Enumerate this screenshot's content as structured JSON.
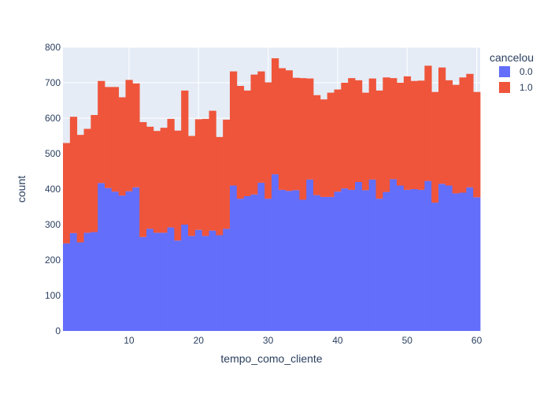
{
  "chart_data": {
    "type": "bar",
    "stacked": true,
    "xlabel": "tempo_como_cliente",
    "ylabel": "count",
    "xlim": [
      0.5,
      60.5
    ],
    "ylim": [
      0,
      800
    ],
    "x_ticks": [
      10,
      20,
      30,
      40,
      50,
      60
    ],
    "y_ticks": [
      0,
      100,
      200,
      300,
      400,
      500,
      600,
      700,
      800
    ],
    "grid": true,
    "legend": {
      "title": "cancelou",
      "position": "top-right"
    },
    "x": [
      1,
      2,
      3,
      4,
      5,
      6,
      7,
      8,
      9,
      10,
      11,
      12,
      13,
      14,
      15,
      16,
      17,
      18,
      19,
      20,
      21,
      22,
      23,
      24,
      25,
      26,
      27,
      28,
      29,
      30,
      31,
      32,
      33,
      34,
      35,
      36,
      37,
      38,
      39,
      40,
      41,
      42,
      43,
      44,
      45,
      46,
      47,
      48,
      49,
      50,
      51,
      52,
      53,
      54,
      55,
      56,
      57,
      58,
      59,
      60
    ],
    "series": [
      {
        "name": "0.0",
        "color": "#636efa",
        "values": [
          247,
          276,
          250,
          277,
          279,
          417,
          403,
          393,
          382,
          394,
          405,
          265,
          288,
          277,
          277,
          292,
          255,
          300,
          268,
          285,
          268,
          283,
          270,
          288,
          410,
          373,
          380,
          385,
          418,
          373,
          442,
          398,
          395,
          397,
          370,
          427,
          383,
          378,
          378,
          393,
          402,
          398,
          420,
          397,
          427,
          373,
          392,
          428,
          410,
          398,
          400,
          398,
          423,
          362,
          415,
          410,
          388,
          390,
          405,
          377
        ]
      },
      {
        "name": "1.0",
        "color": "#ef553b",
        "values": [
          283,
          328,
          303,
          293,
          330,
          288,
          285,
          295,
          277,
          314,
          293,
          324,
          288,
          287,
          296,
          306,
          310,
          378,
          282,
          312,
          330,
          338,
          277,
          308,
          322,
          318,
          298,
          338,
          314,
          328,
          327,
          343,
          340,
          317,
          343,
          285,
          282,
          275,
          294,
          288,
          298,
          315,
          287,
          275,
          285,
          305,
          323,
          285,
          290,
          320,
          305,
          308,
          325,
          312,
          328,
          297,
          306,
          325,
          320,
          297
        ]
      }
    ]
  }
}
